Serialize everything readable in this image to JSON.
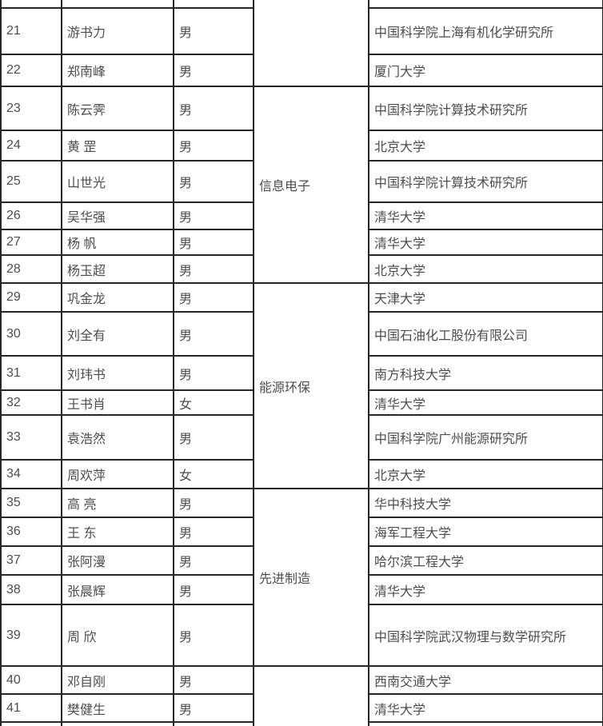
{
  "page": {
    "background": "#ffffff",
    "border_color": "#262626",
    "text_color": "#4d4d4d"
  },
  "table": {
    "categories": {
      "info": "信息电子",
      "energy": "能源环保",
      "manufacturing": "先进制造"
    },
    "rows": [
      {
        "num": "21",
        "name": "游书力",
        "gender": "男",
        "org": "中国科学院上海有机化学研究所"
      },
      {
        "num": "22",
        "name": "郑南峰",
        "gender": "男",
        "org": "厦门大学"
      },
      {
        "num": "23",
        "name": "陈云霁",
        "gender": "男",
        "org": "中国科学院计算技术研究所"
      },
      {
        "num": "24",
        "name": "黄 罡",
        "gender": "男",
        "org": "北京大学"
      },
      {
        "num": "25",
        "name": "山世光",
        "gender": "男",
        "org": "中国科学院计算技术研究所"
      },
      {
        "num": "26",
        "name": "吴华强",
        "gender": "男",
        "org": "清华大学"
      },
      {
        "num": "27",
        "name": "杨 帆",
        "gender": "男",
        "org": "清华大学"
      },
      {
        "num": "28",
        "name": "杨玉超",
        "gender": "男",
        "org": "北京大学"
      },
      {
        "num": "29",
        "name": "巩金龙",
        "gender": "男",
        "org": "天津大学"
      },
      {
        "num": "30",
        "name": "刘全有",
        "gender": "男",
        "org": "中国石油化工股份有限公司"
      },
      {
        "num": "31",
        "name": "刘玮书",
        "gender": "男",
        "org": "南方科技大学"
      },
      {
        "num": "32",
        "name": "王书肖",
        "gender": "女",
        "org": "清华大学"
      },
      {
        "num": "33",
        "name": "袁浩然",
        "gender": "男",
        "org": "中国科学院广州能源研究所"
      },
      {
        "num": "34",
        "name": "周欢萍",
        "gender": "女",
        "org": "北京大学"
      },
      {
        "num": "35",
        "name": "高 亮",
        "gender": "男",
        "org": "华中科技大学"
      },
      {
        "num": "36",
        "name": "王 东",
        "gender": "男",
        "org": "海军工程大学"
      },
      {
        "num": "37",
        "name": "张阿漫",
        "gender": "男",
        "org": "哈尔滨工程大学"
      },
      {
        "num": "38",
        "name": "张晨辉",
        "gender": "男",
        "org": "清华大学"
      },
      {
        "num": "39",
        "name": "周 欣",
        "gender": "男",
        "org": "中国科学院武汉物理与数学研究所"
      },
      {
        "num": "40",
        "name": "邓自刚",
        "gender": "男",
        "org": "西南交通大学"
      },
      {
        "num": "41",
        "name": "樊健生",
        "gender": "男",
        "org": "清华大学"
      }
    ]
  }
}
